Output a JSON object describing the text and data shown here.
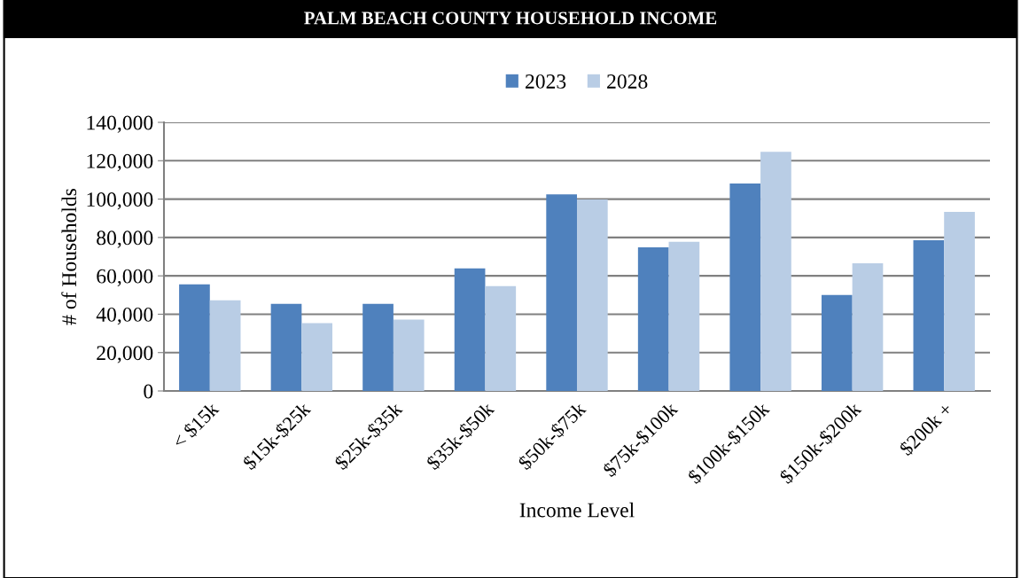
{
  "chart_data": {
    "type": "bar",
    "title": "PALM BEACH COUNTY HOUSEHOLD INCOME",
    "xlabel": "Income Level",
    "ylabel": "# of Households",
    "categories": [
      "< $15k",
      "$15k-$25k",
      "$25k-$35k",
      "$35k-$50k",
      "$50k-$75k",
      "$75k-$100k",
      "$100k-$150k",
      "$150k-$200k",
      "$200k +"
    ],
    "series": [
      {
        "name": "2023",
        "color": "#4f81bd",
        "values": [
          55600,
          45400,
          45400,
          63900,
          102500,
          74900,
          108100,
          50000,
          78600
        ]
      },
      {
        "name": "2028",
        "color": "#b9cde5",
        "values": [
          47300,
          35300,
          37200,
          54700,
          99800,
          77700,
          124700,
          66600,
          93300
        ]
      }
    ],
    "ylim": [
      0,
      140000
    ],
    "yticks": [
      {
        "value": 0,
        "label": "0"
      },
      {
        "value": 20000,
        "label": "20,000"
      },
      {
        "value": 40000,
        "label": "40,000"
      },
      {
        "value": 60000,
        "label": "60,000"
      },
      {
        "value": 80000,
        "label": "80,000"
      },
      {
        "value": 100000,
        "label": "100,000"
      },
      {
        "value": 120000,
        "label": "120,000"
      },
      {
        "value": 140000,
        "label": "140,000"
      }
    ],
    "grid": "y",
    "legend": "top"
  }
}
